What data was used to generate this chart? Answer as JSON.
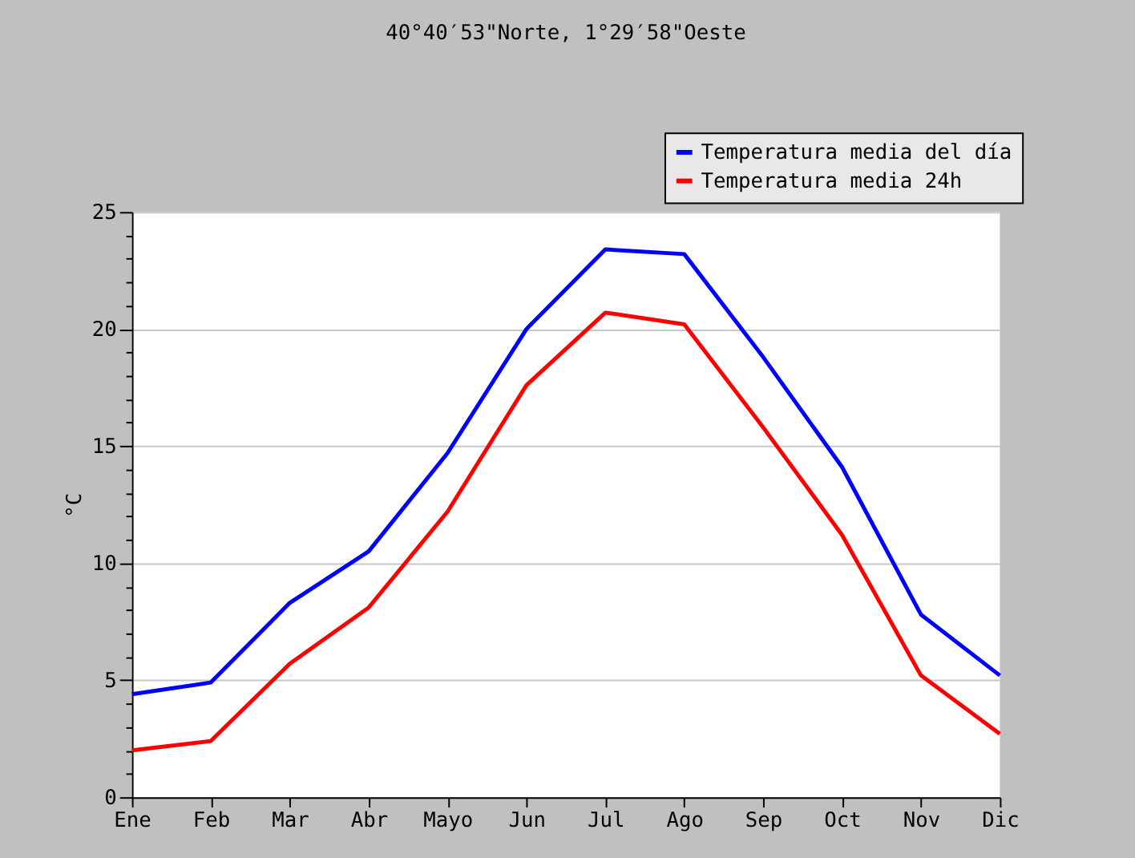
{
  "chart_data": {
    "type": "line",
    "title": "40°40′53\"Norte, 1°29′58\"Oeste",
    "ylabel": "°C",
    "categories": [
      "Ene",
      "Feb",
      "Mar",
      "Abr",
      "Mayo",
      "Jun",
      "Jul",
      "Ago",
      "Sep",
      "Oct",
      "Nov",
      "Dic"
    ],
    "series": [
      {
        "name": "Temperatura media del día",
        "color": "#0000ff",
        "values": [
          4.4,
          4.9,
          8.3,
          10.5,
          14.7,
          20.0,
          23.4,
          23.2,
          18.8,
          14.1,
          7.8,
          5.2
        ]
      },
      {
        "name": "Temperatura media 24h",
        "color": "#ff0000",
        "values": [
          2.0,
          2.4,
          5.7,
          8.1,
          12.2,
          17.6,
          20.7,
          20.2,
          15.8,
          11.2,
          5.2,
          2.7
        ]
      }
    ],
    "ylim": [
      0,
      25
    ],
    "yticks": [
      0,
      {
        "value": 1,
        "label": null
      },
      {
        "value": 2,
        "label": null
      },
      {
        "value": 3,
        "label": null
      },
      {
        "value": 4,
        "label": null
      },
      5,
      {
        "value": 6,
        "label": null
      },
      {
        "value": 7,
        "label": null
      },
      {
        "value": 8,
        "label": null
      },
      {
        "value": 9,
        "label": null
      },
      10,
      {
        "value": 11,
        "label": null
      },
      {
        "value": 12,
        "label": null
      },
      {
        "value": 13,
        "label": null
      },
      {
        "value": 14,
        "label": null
      },
      15,
      {
        "value": 16,
        "label": null
      },
      {
        "value": 17,
        "label": null
      },
      {
        "value": 18,
        "label": null
      },
      {
        "value": 19,
        "label": null
      },
      20,
      {
        "value": 21,
        "label": null
      },
      {
        "value": 22,
        "label": null
      },
      {
        "value": 23,
        "label": null
      },
      {
        "value": 24,
        "label": null
      },
      25
    ],
    "grid": "y",
    "legend": "top right",
    "marker": "none",
    "line_style": "solid"
  }
}
